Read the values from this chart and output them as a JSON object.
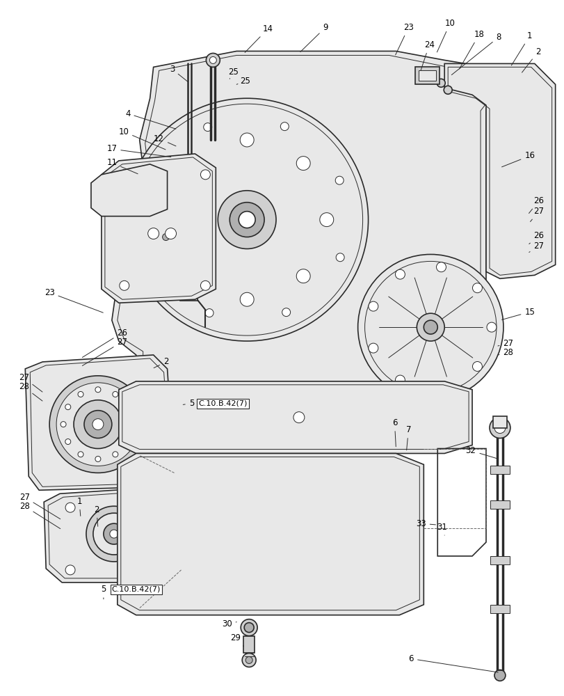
{
  "bg_color": "#ffffff",
  "line_color": "#2a2a2a",
  "fill_light": "#e8e8e8",
  "fill_medium": "#d0d0d0",
  "fill_dark": "#b0b0b0"
}
